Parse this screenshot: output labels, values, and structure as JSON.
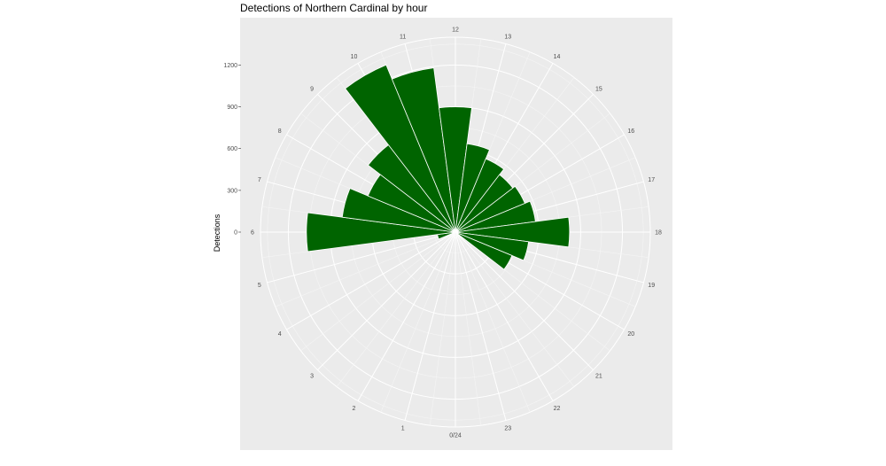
{
  "chart_data": {
    "type": "bar",
    "coord": "polar",
    "title": "Detections of Northern Cardinal by hour",
    "xlabel": "",
    "ylabel": "Detections",
    "categories": [
      "0/24",
      "1",
      "2",
      "3",
      "4",
      "5",
      "6",
      "7",
      "8",
      "9",
      "10",
      "11",
      "12",
      "13",
      "14",
      "15",
      "16",
      "17",
      "18",
      "19",
      "20",
      "21",
      "22",
      "23"
    ],
    "values": [
      0,
      0,
      0,
      0,
      0,
      130,
      1070,
      820,
      680,
      790,
      1300,
      1190,
      900,
      640,
      570,
      520,
      540,
      580,
      820,
      530,
      440,
      0,
      0,
      0
    ],
    "y_ticks": [
      "0",
      "300",
      "600",
      "900",
      "1200"
    ],
    "ylim": [
      0,
      1400
    ],
    "grid": true,
    "bar_color": "#006400",
    "panel_background": "#ebebeb"
  }
}
